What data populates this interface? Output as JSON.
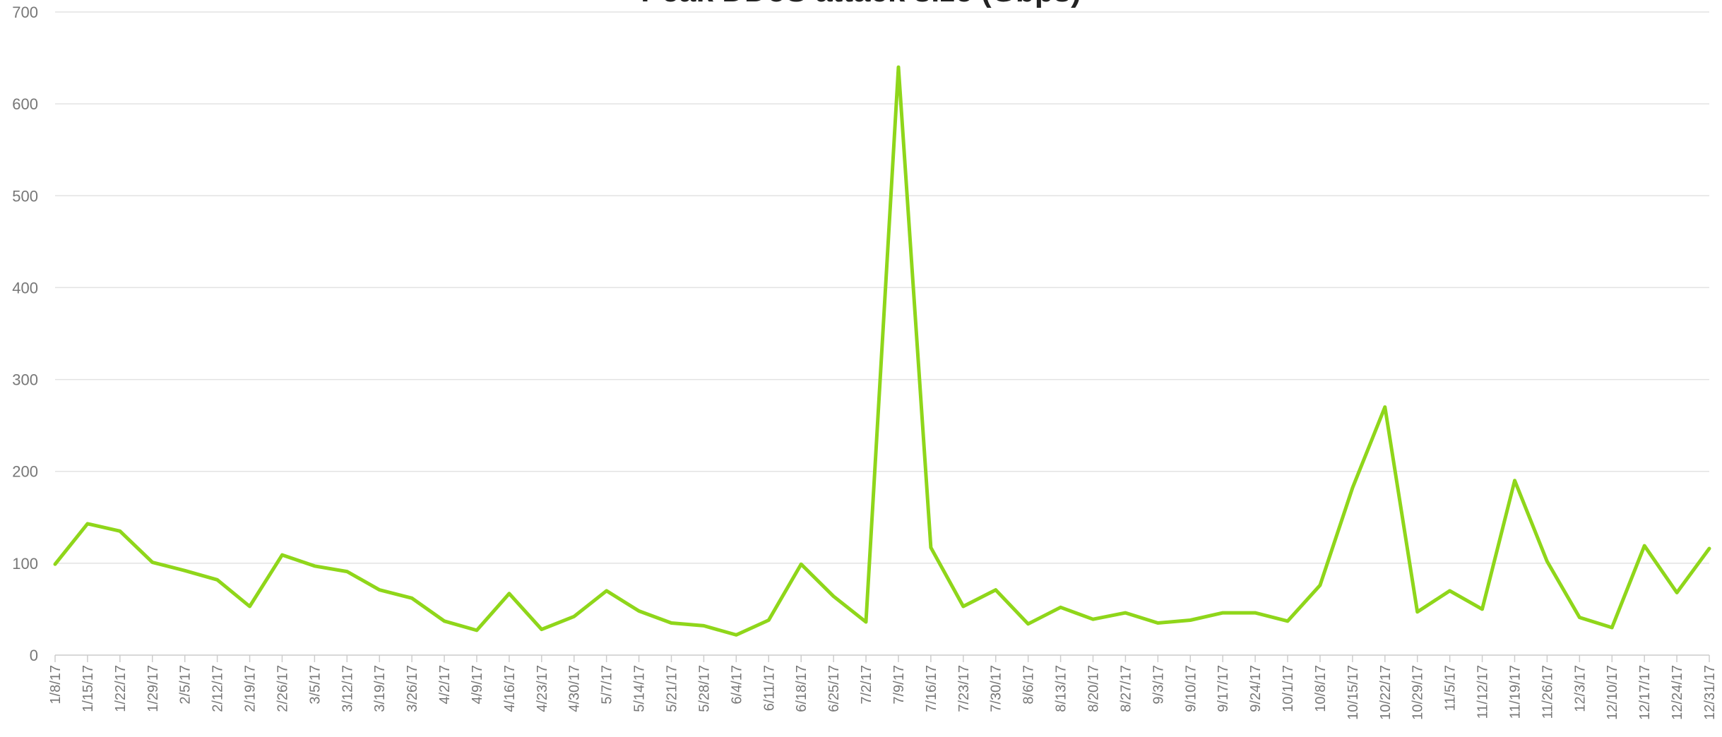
{
  "chart_data": {
    "type": "line",
    "title": "Peak DDoS attack size (Gbps)",
    "xlabel": "",
    "ylabel": "",
    "ylim": [
      0,
      700
    ],
    "yticks": [
      "0",
      "100",
      "200",
      "300",
      "400",
      "500",
      "600",
      "700"
    ],
    "grid": true,
    "legend": "none",
    "x": [
      "1/8/17",
      "1/15/17",
      "1/22/17",
      "1/29/17",
      "2/5/17",
      "2/12/17",
      "2/19/17",
      "2/26/17",
      "3/5/17",
      "3/12/17",
      "3/19/17",
      "3/26/17",
      "4/2/17",
      "4/9/17",
      "4/16/17",
      "4/23/17",
      "4/30/17",
      "5/7/17",
      "5/14/17",
      "5/21/17",
      "5/28/17",
      "6/4/17",
      "6/11/17",
      "6/18/17",
      "6/25/17",
      "7/2/17",
      "7/9/17",
      "7/16/17",
      "7/23/17",
      "7/30/17",
      "8/6/17",
      "8/13/17",
      "8/20/17",
      "8/27/17",
      "9/3/17",
      "9/10/17",
      "9/17/17",
      "9/24/17",
      "10/1/17",
      "10/8/17",
      "10/15/17",
      "10/22/17",
      "10/29/17",
      "11/5/17",
      "11/12/17",
      "11/19/17",
      "11/26/17",
      "12/3/17",
      "12/10/17",
      "12/17/17",
      "12/24/17",
      "12/31/17"
    ],
    "series": [
      {
        "color": "#8fd61a",
        "values": [
          99,
          143,
          135,
          101,
          92,
          82,
          53,
          109,
          97,
          91,
          71,
          62,
          37,
          27,
          67,
          28,
          42,
          70,
          48,
          35,
          32,
          22,
          38,
          99,
          64,
          36,
          640,
          117,
          53,
          71,
          34,
          52,
          39,
          46,
          35,
          38,
          46,
          46,
          37,
          76,
          182,
          270,
          47,
          70,
          50,
          190,
          102,
          41,
          30,
          119,
          68,
          116
        ]
      }
    ]
  }
}
